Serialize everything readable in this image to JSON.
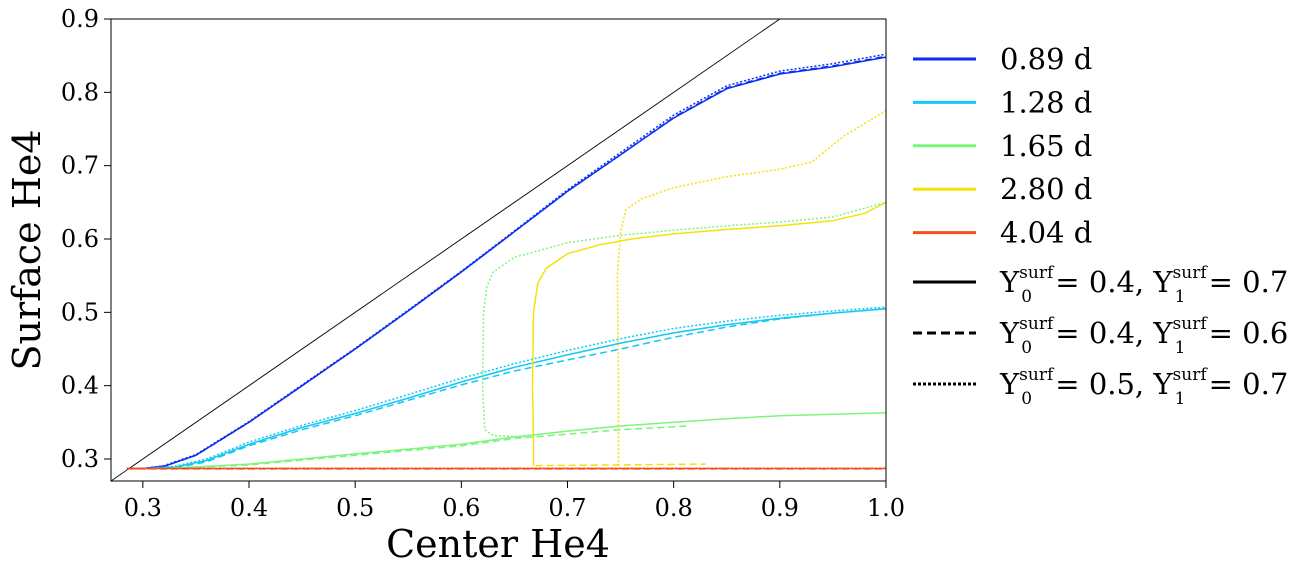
{
  "chart_data": {
    "type": "line",
    "xlabel": "Center He4",
    "ylabel": "Surface He4",
    "xlim": [
      0.27,
      1.0
    ],
    "ylim": [
      0.27,
      0.9
    ],
    "xticks": [
      "0.3",
      "0.4",
      "0.5",
      "0.6",
      "0.7",
      "0.8",
      "0.9",
      "1.0"
    ],
    "yticks": [
      "0.3",
      "0.4",
      "0.5",
      "0.6",
      "0.7",
      "0.8",
      "0.9"
    ],
    "grid": false,
    "legend_position": "outside-right",
    "reference_line": {
      "x": [
        0.27,
        0.9
      ],
      "y": [
        0.27,
        0.9
      ],
      "color": "#000000"
    },
    "period_legend": [
      {
        "label": "0.89 d",
        "color": "#0a2ff0"
      },
      {
        "label": "1.28 d",
        "color": "#12c8f5"
      },
      {
        "label": "1.65 d",
        "color": "#7cf57c"
      },
      {
        "label": "2.80 d",
        "color": "#f5e10a"
      },
      {
        "label": "4.04 d",
        "color": "#f0501e"
      }
    ],
    "style_legend": [
      {
        "style": "solid",
        "pre": "Y",
        "sup0": "surf",
        "sub0": "0",
        "mid": " = 0.4, Y",
        "sup1": "surf",
        "sub1": "1",
        "post": " = 0.7"
      },
      {
        "style": "dashed",
        "pre": "Y",
        "sup0": "surf",
        "sub0": "0",
        "mid": " = 0.4, Y",
        "sup1": "surf",
        "sub1": "1",
        "post": " = 0.6"
      },
      {
        "style": "dotted",
        "pre": "Y",
        "sup0": "surf",
        "sub0": "0",
        "mid": " = 0.5, Y",
        "sup1": "surf",
        "sub1": "1",
        "post": " = 0.7"
      }
    ],
    "series": [
      {
        "period": "0.89 d",
        "color": "#0a2ff0",
        "style": "solid",
        "x": [
          0.285,
          0.3,
          0.32,
          0.35,
          0.4,
          0.45,
          0.5,
          0.55,
          0.6,
          0.65,
          0.7,
          0.75,
          0.8,
          0.85,
          0.9,
          0.95,
          1.0
        ],
        "y": [
          0.287,
          0.287,
          0.29,
          0.305,
          0.35,
          0.4,
          0.45,
          0.502,
          0.555,
          0.61,
          0.665,
          0.715,
          0.765,
          0.805,
          0.825,
          0.835,
          0.848
        ]
      },
      {
        "period": "0.89 d",
        "color": "#0a2ff0",
        "style": "dashed",
        "x": [
          0.285,
          0.3,
          0.32,
          0.35,
          0.4,
          0.45,
          0.5,
          0.55,
          0.6,
          0.65,
          0.7,
          0.75,
          0.8,
          0.85,
          0.9,
          0.95,
          1.0
        ],
        "y": [
          0.287,
          0.287,
          0.29,
          0.305,
          0.35,
          0.4,
          0.45,
          0.502,
          0.555,
          0.61,
          0.665,
          0.715,
          0.766,
          0.806,
          0.826,
          0.836,
          0.849
        ]
      },
      {
        "period": "0.89 d",
        "color": "#0a2ff0",
        "style": "dotted",
        "x": [
          0.285,
          0.3,
          0.32,
          0.35,
          0.4,
          0.45,
          0.5,
          0.55,
          0.6,
          0.65,
          0.7,
          0.75,
          0.8,
          0.85,
          0.9,
          0.95,
          1.0
        ],
        "y": [
          0.287,
          0.287,
          0.291,
          0.306,
          0.351,
          0.401,
          0.451,
          0.503,
          0.556,
          0.611,
          0.667,
          0.718,
          0.769,
          0.809,
          0.829,
          0.839,
          0.852
        ]
      },
      {
        "period": "1.28 d",
        "color": "#12c8f5",
        "style": "solid",
        "x": [
          0.3,
          0.33,
          0.36,
          0.4,
          0.45,
          0.5,
          0.55,
          0.6,
          0.65,
          0.7,
          0.75,
          0.8,
          0.85,
          0.9,
          0.95,
          1.0
        ],
        "y": [
          0.287,
          0.289,
          0.298,
          0.32,
          0.343,
          0.362,
          0.383,
          0.405,
          0.425,
          0.442,
          0.458,
          0.472,
          0.483,
          0.492,
          0.499,
          0.505
        ]
      },
      {
        "period": "1.28 d",
        "color": "#12c8f5",
        "style": "dashed",
        "x": [
          0.3,
          0.33,
          0.36,
          0.4,
          0.45,
          0.5,
          0.55,
          0.6,
          0.65,
          0.7,
          0.75,
          0.8,
          0.85,
          0.9,
          0.95,
          1.0
        ],
        "y": [
          0.287,
          0.288,
          0.296,
          0.318,
          0.34,
          0.359,
          0.38,
          0.401,
          0.42,
          0.435,
          0.45,
          0.466,
          0.48,
          0.491,
          0.499,
          0.505
        ]
      },
      {
        "period": "1.28 d",
        "color": "#12c8f5",
        "style": "dotted",
        "x": [
          0.3,
          0.33,
          0.36,
          0.4,
          0.45,
          0.5,
          0.55,
          0.6,
          0.65,
          0.7,
          0.75,
          0.8,
          0.85,
          0.9,
          0.95,
          1.0
        ],
        "y": [
          0.287,
          0.29,
          0.3,
          0.323,
          0.346,
          0.366,
          0.388,
          0.41,
          0.43,
          0.448,
          0.464,
          0.478,
          0.488,
          0.496,
          0.502,
          0.507
        ]
      },
      {
        "period": "1.65 d",
        "color": "#7cf57c",
        "style": "solid",
        "x": [
          0.32,
          0.4,
          0.5,
          0.6,
          0.65,
          0.7,
          0.75,
          0.8,
          0.85,
          0.9,
          0.95,
          1.0
        ],
        "y": [
          0.287,
          0.293,
          0.307,
          0.32,
          0.33,
          0.338,
          0.345,
          0.35,
          0.355,
          0.359,
          0.361,
          0.363
        ]
      },
      {
        "period": "1.65 d",
        "color": "#7cf57c",
        "style": "dashed",
        "x": [
          0.32,
          0.4,
          0.5,
          0.6,
          0.65,
          0.7,
          0.75,
          0.815
        ],
        "y": [
          0.287,
          0.292,
          0.305,
          0.318,
          0.328,
          0.334,
          0.34,
          0.345
        ]
      },
      {
        "period": "1.65 d",
        "color": "#7cf57c",
        "style": "dotted",
        "x": [
          0.66,
          0.63,
          0.622,
          0.62,
          0.621,
          0.624,
          0.63,
          0.65,
          0.7,
          0.75,
          0.8,
          0.85,
          0.9,
          0.95,
          1.0
        ],
        "y": [
          0.33,
          0.332,
          0.34,
          0.4,
          0.5,
          0.535,
          0.555,
          0.575,
          0.595,
          0.605,
          0.612,
          0.618,
          0.623,
          0.63,
          0.65
        ]
      },
      {
        "period": "2.80 d",
        "color": "#f5e10a",
        "style": "solid",
        "x": [
          0.668,
          0.668,
          0.667,
          0.668,
          0.672,
          0.68,
          0.7,
          0.73,
          0.76,
          0.8,
          0.85,
          0.9,
          0.95,
          0.98,
          1.0
        ],
        "y": [
          0.29,
          0.33,
          0.4,
          0.5,
          0.54,
          0.56,
          0.58,
          0.592,
          0.6,
          0.607,
          0.613,
          0.618,
          0.625,
          0.635,
          0.65
        ]
      },
      {
        "period": "2.80 d",
        "color": "#f5e10a",
        "style": "dashed",
        "x": [
          0.67,
          0.75,
          0.83
        ],
        "y": [
          0.291,
          0.292,
          0.293
        ]
      },
      {
        "period": "2.80 d",
        "color": "#f5e10a",
        "style": "dotted",
        "x": [
          0.748,
          0.748,
          0.747,
          0.75,
          0.755,
          0.77,
          0.8,
          0.85,
          0.9,
          0.93,
          0.96,
          1.0
        ],
        "y": [
          0.29,
          0.4,
          0.55,
          0.61,
          0.64,
          0.655,
          0.67,
          0.685,
          0.695,
          0.705,
          0.74,
          0.775
        ]
      },
      {
        "period": "4.04 d",
        "color": "#f0501e",
        "style": "solid",
        "x": [
          0.285,
          1.0
        ],
        "y": [
          0.287,
          0.287
        ]
      },
      {
        "period": "4.04 d",
        "color": "#f0501e",
        "style": "dashed",
        "x": [
          0.285,
          1.0
        ],
        "y": [
          0.2865,
          0.2865
        ]
      },
      {
        "period": "4.04 d",
        "color": "#f0501e",
        "style": "dotted",
        "x": [
          0.285,
          1.0
        ],
        "y": [
          0.2875,
          0.2875
        ]
      }
    ]
  }
}
